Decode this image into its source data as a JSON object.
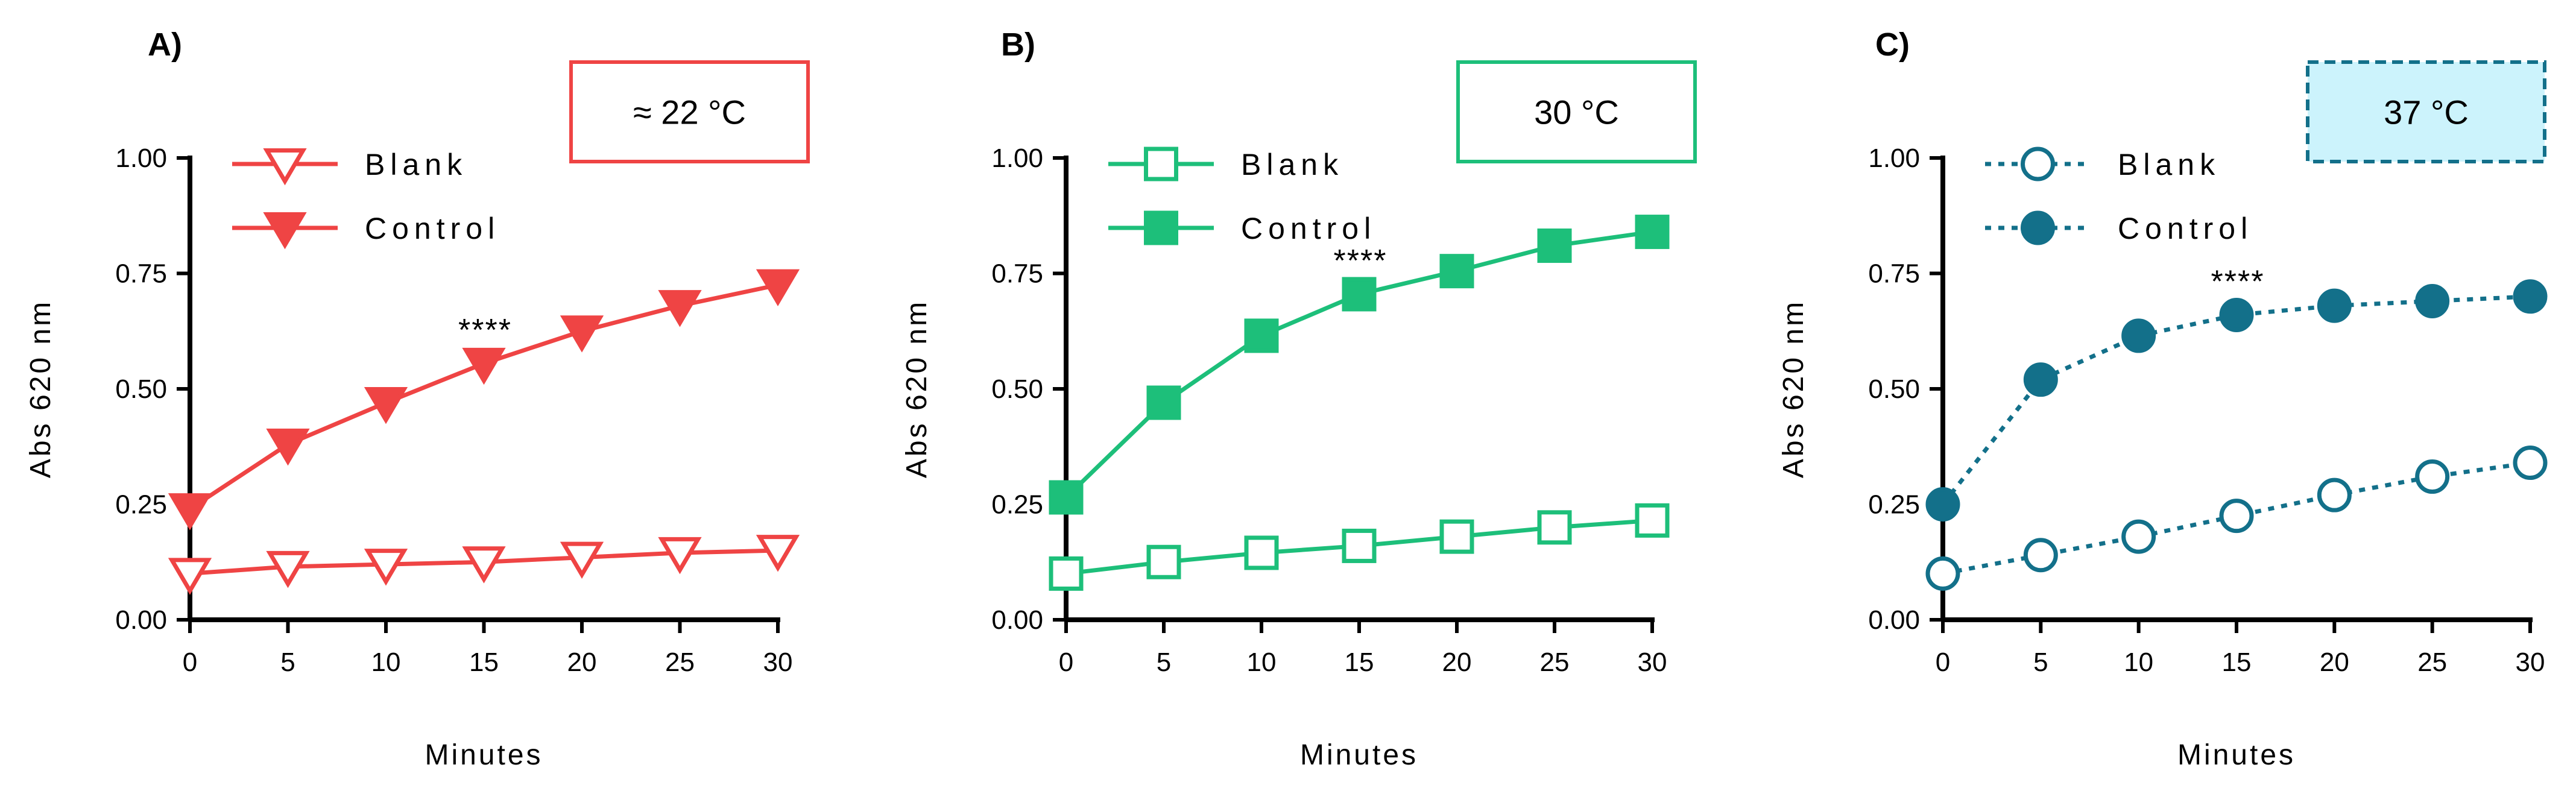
{
  "chart_data": [
    {
      "type": "line",
      "panel": "A)",
      "condition": "≈ 22 °C",
      "xlabel": "Minutes",
      "ylabel": "Abs 620 nm",
      "x": [
        0,
        5,
        10,
        15,
        20,
        25,
        30
      ],
      "xticks": [
        "0",
        "5",
        "10",
        "15",
        "20",
        "25",
        "30"
      ],
      "xlim": [
        0,
        30
      ],
      "ylim": [
        0,
        1
      ],
      "yticks": [
        "0.00",
        "0.25",
        "0.50",
        "0.75",
        "1.00"
      ],
      "color": "#ef4444",
      "line_style": "solid",
      "marker": "triangle-down",
      "legend_position": "top-left",
      "annotation": {
        "text": "****",
        "x": 15
      },
      "series": [
        {
          "name": "Blank",
          "filled": false,
          "values": [
            0.1,
            0.115,
            0.12,
            0.125,
            0.135,
            0.145,
            0.15
          ]
        },
        {
          "name": "Control",
          "filled": true,
          "values": [
            0.24,
            0.38,
            0.47,
            0.555,
            0.625,
            0.68,
            0.725
          ]
        }
      ]
    },
    {
      "type": "line",
      "panel": "B)",
      "condition": "30 °C",
      "xlabel": "Minutes",
      "ylabel": "Abs 620 nm",
      "x": [
        0,
        5,
        10,
        15,
        20,
        25,
        30
      ],
      "xticks": [
        "0",
        "5",
        "10",
        "15",
        "20",
        "25",
        "30"
      ],
      "xlim": [
        0,
        30
      ],
      "ylim": [
        0,
        1
      ],
      "yticks": [
        "0.00",
        "0.25",
        "0.50",
        "0.75",
        "1.00"
      ],
      "color": "#1dbf7a",
      "line_style": "solid",
      "marker": "square",
      "legend_position": "top-left",
      "annotation": {
        "text": "****",
        "x": 15
      },
      "series": [
        {
          "name": "Blank",
          "filled": false,
          "values": [
            0.1,
            0.125,
            0.145,
            0.16,
            0.18,
            0.2,
            0.215
          ]
        },
        {
          "name": "Control",
          "filled": true,
          "values": [
            0.265,
            0.47,
            0.615,
            0.705,
            0.755,
            0.81,
            0.84
          ]
        }
      ]
    },
    {
      "type": "line",
      "panel": "C)",
      "condition": "37 °C",
      "xlabel": "Minutes",
      "ylabel": "Abs 620 nm",
      "x": [
        0,
        5,
        10,
        15,
        20,
        25,
        30
      ],
      "xticks": [
        "0",
        "5",
        "10",
        "15",
        "20",
        "25",
        "30"
      ],
      "xlim": [
        0,
        30
      ],
      "ylim": [
        0,
        1
      ],
      "yticks": [
        "0.00",
        "0.25",
        "0.50",
        "0.75",
        "1.00"
      ],
      "color": "#13708a",
      "condition_fill": "#ccf3fc",
      "line_style": "dotted",
      "marker": "circle",
      "legend_position": "top-left",
      "annotation": {
        "text": "****",
        "x": 15
      },
      "series": [
        {
          "name": "Blank",
          "filled": false,
          "values": [
            0.1,
            0.14,
            0.18,
            0.225,
            0.27,
            0.31,
            0.34
          ]
        },
        {
          "name": "Control",
          "filled": true,
          "values": [
            0.25,
            0.52,
            0.615,
            0.66,
            0.68,
            0.69,
            0.7
          ]
        }
      ]
    }
  ]
}
